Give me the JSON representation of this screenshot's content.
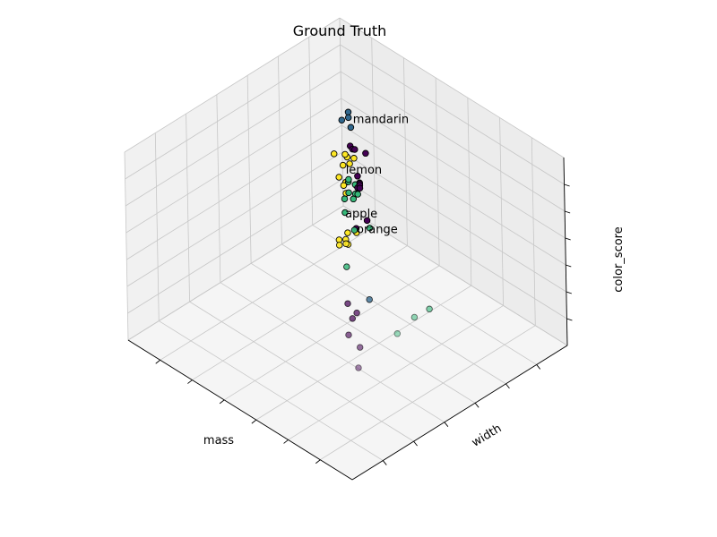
{
  "chart_data": {
    "type": "scatter",
    "title": "Ground Truth",
    "axes": {
      "x": "mass",
      "y": "width",
      "z": "color_score"
    },
    "grid": true,
    "projection": "3d",
    "class_labels": [
      "orange",
      "apple",
      "lemon",
      "mandarin"
    ],
    "palette": [
      "#440154",
      "#31688e",
      "#35b779",
      "#fde725"
    ],
    "series": [
      {
        "class": "apple",
        "color": "#440154",
        "points": [
          {
            "x": 0.55,
            "y": 0.6,
            "z": 0.92
          },
          {
            "x": 0.57,
            "y": 0.61,
            "z": 0.9
          },
          {
            "x": 0.6,
            "y": 0.63,
            "z": 0.88
          },
          {
            "x": 0.58,
            "y": 0.68,
            "z": 0.82
          },
          {
            "x": 0.53,
            "y": 0.59,
            "z": 0.8
          },
          {
            "x": 0.55,
            "y": 0.62,
            "z": 0.7
          },
          {
            "x": 0.56,
            "y": 0.63,
            "z": 0.7
          },
          {
            "x": 0.57,
            "y": 0.63,
            "z": 0.68
          },
          {
            "x": 0.58,
            "y": 0.65,
            "z": 0.68
          },
          {
            "x": 0.59,
            "y": 0.66,
            "z": 0.67
          },
          {
            "x": 0.52,
            "y": 0.62,
            "z": 0.55
          },
          {
            "x": 0.55,
            "y": 0.6,
            "z": 0.5
          },
          {
            "x": 0.3,
            "y": 0.3,
            "z": 0.5
          },
          {
            "x": 0.26,
            "y": 0.3,
            "z": 0.48
          },
          {
            "x": 0.27,
            "y": 0.29,
            "z": 0.45
          },
          {
            "x": 0.22,
            "y": 0.22,
            "z": 0.45
          },
          {
            "x": 0.15,
            "y": 0.2,
            "z": 0.45
          },
          {
            "x": 0.08,
            "y": 0.12,
            "z": 0.45
          }
        ]
      },
      {
        "class": "mandarin",
        "color": "#31688e",
        "points": [
          {
            "x": 0.95,
            "y": 0.98,
            "z": 0.55
          },
          {
            "x": 0.93,
            "y": 0.96,
            "z": 0.55
          },
          {
            "x": 0.97,
            "y": 0.97,
            "z": 0.5
          },
          {
            "x": 0.91,
            "y": 0.95,
            "z": 0.52
          },
          {
            "x": 0.3,
            "y": 0.4,
            "z": 0.45
          }
        ]
      },
      {
        "class": "orange",
        "color": "#35b779",
        "points": [
          {
            "x": 0.62,
            "y": 0.64,
            "z": 0.68
          },
          {
            "x": 0.6,
            "y": 0.65,
            "z": 0.66
          },
          {
            "x": 0.56,
            "y": 0.62,
            "z": 0.66
          },
          {
            "x": 0.58,
            "y": 0.63,
            "z": 0.64
          },
          {
            "x": 0.6,
            "y": 0.6,
            "z": 0.62
          },
          {
            "x": 0.58,
            "y": 0.62,
            "z": 0.62
          },
          {
            "x": 0.55,
            "y": 0.55,
            "z": 0.62
          },
          {
            "x": 0.44,
            "y": 0.55,
            "z": 0.62
          },
          {
            "x": 0.64,
            "y": 0.66,
            "z": 0.58
          },
          {
            "x": 0.68,
            "y": 0.7,
            "z": 0.58
          },
          {
            "x": 0.48,
            "y": 0.52,
            "z": 0.6
          },
          {
            "x": 0.4,
            "y": 0.4,
            "z": 0.55
          },
          {
            "x": 0.03,
            "y": 0.4,
            "z": 0.6
          },
          {
            "x": 0.0,
            "y": 0.3,
            "z": 0.65
          },
          {
            "x": 0.0,
            "y": 0.22,
            "z": 0.62
          }
        ]
      },
      {
        "class": "lemon",
        "color": "#fde725",
        "points": [
          {
            "x": 0.45,
            "y": 0.45,
            "z": 0.6
          },
          {
            "x": 0.48,
            "y": 0.45,
            "z": 0.57
          },
          {
            "x": 0.47,
            "y": 0.48,
            "z": 0.56
          },
          {
            "x": 0.5,
            "y": 0.5,
            "z": 0.55
          },
          {
            "x": 0.52,
            "y": 0.49,
            "z": 0.54
          },
          {
            "x": 0.5,
            "y": 0.55,
            "z": 0.55
          },
          {
            "x": 0.54,
            "y": 0.55,
            "z": 0.52
          },
          {
            "x": 0.84,
            "y": 0.85,
            "z": 0.5
          },
          {
            "x": 0.82,
            "y": 0.87,
            "z": 0.48
          },
          {
            "x": 0.88,
            "y": 0.84,
            "z": 0.48
          },
          {
            "x": 0.83,
            "y": 0.86,
            "z": 0.45
          },
          {
            "x": 0.86,
            "y": 0.86,
            "z": 0.42
          },
          {
            "x": 0.88,
            "y": 0.9,
            "z": 0.42
          },
          {
            "x": 0.84,
            "y": 0.82,
            "z": 0.4
          },
          {
            "x": 0.8,
            "y": 0.8,
            "z": 0.4
          },
          {
            "x": 0.82,
            "y": 0.83,
            "z": 0.38
          },
          {
            "x": 0.78,
            "y": 0.79,
            "z": 0.38
          }
        ]
      }
    ],
    "annotations": [
      {
        "text": "orange",
        "x": 0.45,
        "y": 0.5,
        "z": 0.62
      },
      {
        "text": "apple",
        "x": 0.56,
        "y": 0.56,
        "z": 0.58
      },
      {
        "text": "lemon",
        "x": 0.77,
        "y": 0.78,
        "z": 0.5
      },
      {
        "text": "mandarin",
        "x": 0.9,
        "y": 0.95,
        "z": 0.55
      }
    ]
  }
}
